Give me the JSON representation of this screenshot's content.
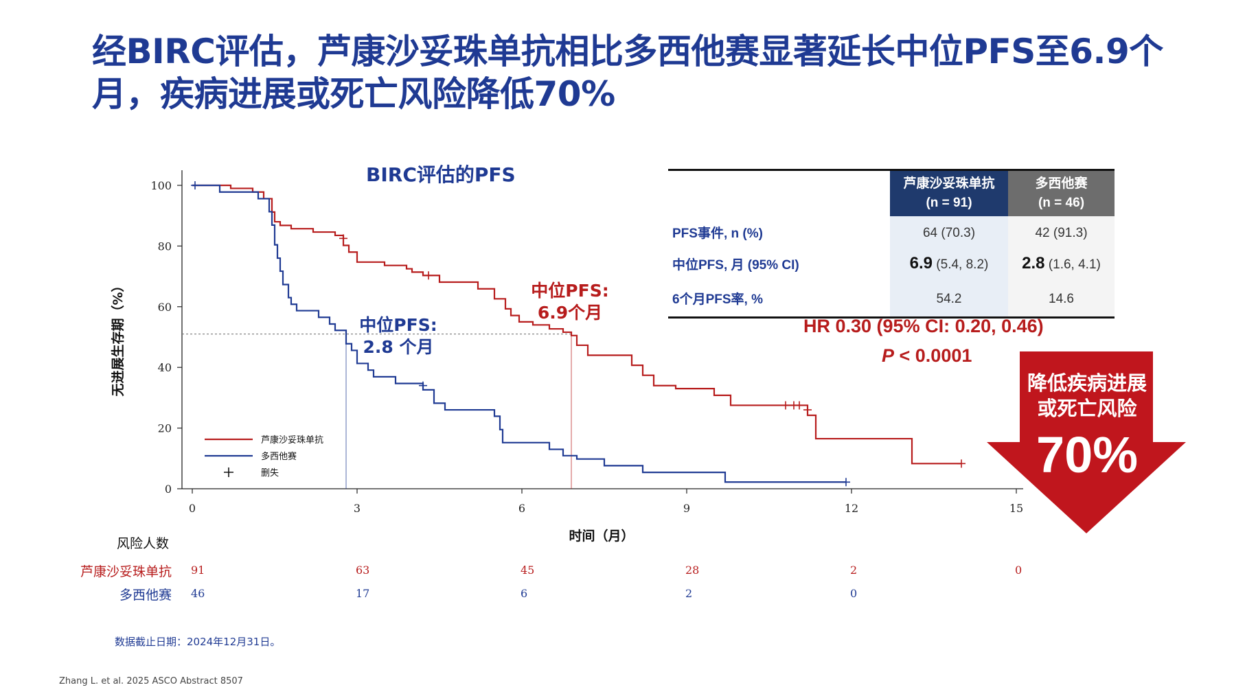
{
  "title": "经BIRC评估，芦康沙妥珠单抗相比多西他赛显著延长中位PFS至6.9个月，疾病进展或死亡风险降低70%",
  "chart_title": "BIRC评估的PFS",
  "chart_data": {
    "type": "line",
    "xlabel": "时间（月）",
    "ylabel": "无进展生存期（%）",
    "xlim": [
      0,
      15
    ],
    "ylim": [
      0,
      100
    ],
    "x_ticks": [
      "0",
      "3",
      "6",
      "9",
      "12",
      "15"
    ],
    "y_ticks": [
      "0",
      "20",
      "40",
      "60",
      "80",
      "100"
    ],
    "legend_position": "bottom-left",
    "legend_censor_label": "删失",
    "median_line_y": 51,
    "series": [
      {
        "name": "芦康沙妥珠单抗",
        "color": "#b71c1c",
        "steps": [
          [
            0,
            100
          ],
          [
            0.7,
            99
          ],
          [
            1.1,
            97.8
          ],
          [
            1.3,
            95.6
          ],
          [
            1.45,
            91.2
          ],
          [
            1.5,
            88
          ],
          [
            1.6,
            86.8
          ],
          [
            1.8,
            85.7
          ],
          [
            2.2,
            84.6
          ],
          [
            2.6,
            83.5
          ],
          [
            2.75,
            80.2
          ],
          [
            2.85,
            78
          ],
          [
            3.0,
            74.7
          ],
          [
            3.5,
            73.6
          ],
          [
            3.9,
            72.5
          ],
          [
            4.0,
            71.4
          ],
          [
            4.2,
            70.3
          ],
          [
            4.5,
            68.1
          ],
          [
            5.2,
            65.9
          ],
          [
            5.5,
            62.6
          ],
          [
            5.7,
            59.3
          ],
          [
            5.8,
            57.1
          ],
          [
            5.95,
            55
          ],
          [
            6.2,
            54
          ],
          [
            6.5,
            52.7
          ],
          [
            6.75,
            51.6
          ],
          [
            6.9,
            50.5
          ],
          [
            7.0,
            47.3
          ],
          [
            7.2,
            44
          ],
          [
            8.0,
            40.7
          ],
          [
            8.2,
            37.4
          ],
          [
            8.4,
            34
          ],
          [
            8.8,
            33
          ],
          [
            9.5,
            30.8
          ],
          [
            9.8,
            27.5
          ],
          [
            11.2,
            24.2
          ],
          [
            11.35,
            16.5
          ],
          [
            13.1,
            8.3
          ]
        ],
        "end": 14.0,
        "censored": [
          [
            2.75,
            82.5
          ],
          [
            4.3,
            70.3
          ],
          [
            10.8,
            27.5
          ],
          [
            10.95,
            27.5
          ],
          [
            11.05,
            27.5
          ],
          [
            11.2,
            26
          ],
          [
            14.0,
            8.3
          ]
        ]
      },
      {
        "name": "多西他赛",
        "color": "#1f3a93",
        "steps": [
          [
            0,
            100
          ],
          [
            0.5,
            97.8
          ],
          [
            1.2,
            95.6
          ],
          [
            1.4,
            91.3
          ],
          [
            1.45,
            86.9
          ],
          [
            1.5,
            80.4
          ],
          [
            1.55,
            76
          ],
          [
            1.6,
            71.7
          ],
          [
            1.65,
            67.3
          ],
          [
            1.75,
            63
          ],
          [
            1.8,
            60.8
          ],
          [
            1.9,
            58.7
          ],
          [
            2.3,
            56.5
          ],
          [
            2.5,
            54.3
          ],
          [
            2.6,
            52.2
          ],
          [
            2.8,
            47.8
          ],
          [
            2.9,
            45.6
          ],
          [
            3.0,
            41.3
          ],
          [
            3.2,
            39.1
          ],
          [
            3.3,
            36.9
          ],
          [
            3.7,
            34.7
          ],
          [
            4.2,
            32.6
          ],
          [
            4.4,
            28.2
          ],
          [
            4.6,
            26
          ],
          [
            5.5,
            23.9
          ],
          [
            5.6,
            19.5
          ],
          [
            5.65,
            15.2
          ],
          [
            6.5,
            13
          ],
          [
            6.75,
            10.9
          ],
          [
            7.0,
            9.8
          ],
          [
            7.5,
            7.6
          ],
          [
            8.2,
            5.4
          ],
          [
            9.7,
            2.2
          ]
        ],
        "end": 11.9,
        "censored": [
          [
            0.05,
            100
          ],
          [
            4.2,
            34
          ],
          [
            11.9,
            2.2
          ]
        ]
      }
    ],
    "medians": [
      {
        "series": "芦康沙妥珠单抗",
        "x": 6.9,
        "label_line1": "中位PFS:",
        "label_line2": "6.9个月"
      },
      {
        "series": "多西他赛",
        "x": 2.8,
        "label_line1": "中位PFS:",
        "label_line2": "2.8 个月"
      }
    ],
    "risk_table": {
      "title": "风险人数",
      "times": [
        0,
        3,
        6,
        9,
        12,
        15
      ],
      "rows": [
        {
          "name": "芦康沙妥珠单抗",
          "color": "#b71c1c",
          "values": [
            "91",
            "63",
            "45",
            "28",
            "2",
            "0"
          ]
        },
        {
          "name": "多西他赛",
          "color": "#1f3a93",
          "values": [
            "46",
            "17",
            "6",
            "2",
            "0",
            ""
          ]
        }
      ]
    }
  },
  "table": {
    "col_a_line1": "芦康沙妥珠单抗",
    "col_a_line2": "(n = 91)",
    "col_b_line1": "多西他赛",
    "col_b_line2": "(n = 46)",
    "rows": [
      {
        "label": "PFS事件, n (%)",
        "a_main": "",
        "a_sub": "64 (70.3)",
        "b_main": "",
        "b_sub": "42 (91.3)"
      },
      {
        "label": "中位PFS, 月 (95% CI)",
        "a_main": "6.9",
        "a_sub": " (5.4, 8.2)",
        "b_main": "2.8",
        "b_sub": " (1.6, 4.1)"
      },
      {
        "label": "6个月PFS率, %",
        "a_main": "",
        "a_sub": "54.2",
        "b_main": "",
        "b_sub": "14.6"
      }
    ]
  },
  "hr_text": "HR 0.30 (95% CI: 0.20, 0.46)",
  "p_label": "P",
  "p_value": " <  0.0001",
  "arrow": {
    "line1": "降低疾病进展",
    "line2": "或死亡风险",
    "percent": "70%",
    "color": "#c0161d"
  },
  "cutoff": "数据截止日期：2024年12月31日。",
  "reference": "Zhang L. et al. 2025 ASCO Abstract 8507"
}
